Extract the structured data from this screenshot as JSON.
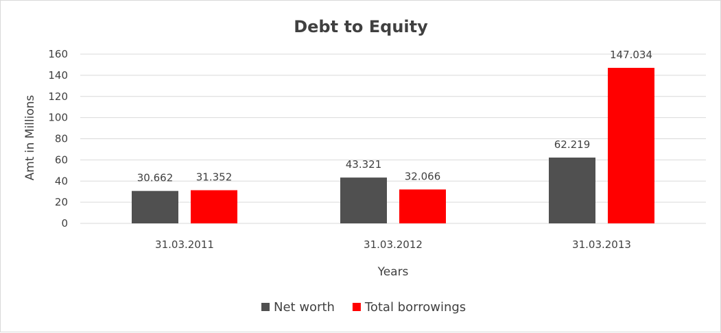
{
  "chart_data": {
    "type": "bar",
    "title": "Debt to Equity",
    "xlabel": "Years",
    "ylabel": "Amt in Millions",
    "categories": [
      "31.03.2011",
      "31.03.2012",
      "31.03.2013"
    ],
    "series": [
      {
        "name": "Net worth",
        "values": [
          30.662,
          43.321,
          62.219
        ],
        "labels": [
          "30.662",
          "43.321",
          "62.219"
        ],
        "color": "#505050"
      },
      {
        "name": "Total borrowings",
        "values": [
          31.352,
          32.066,
          147.034
        ],
        "labels": [
          "31.352",
          "32.066",
          "147.034"
        ],
        "color": "#ff0000"
      }
    ],
    "ylim": [
      0,
      160
    ],
    "yticks": [
      0,
      20,
      40,
      60,
      80,
      100,
      120,
      140,
      160
    ],
    "grid": true,
    "legend_position": "bottom"
  }
}
